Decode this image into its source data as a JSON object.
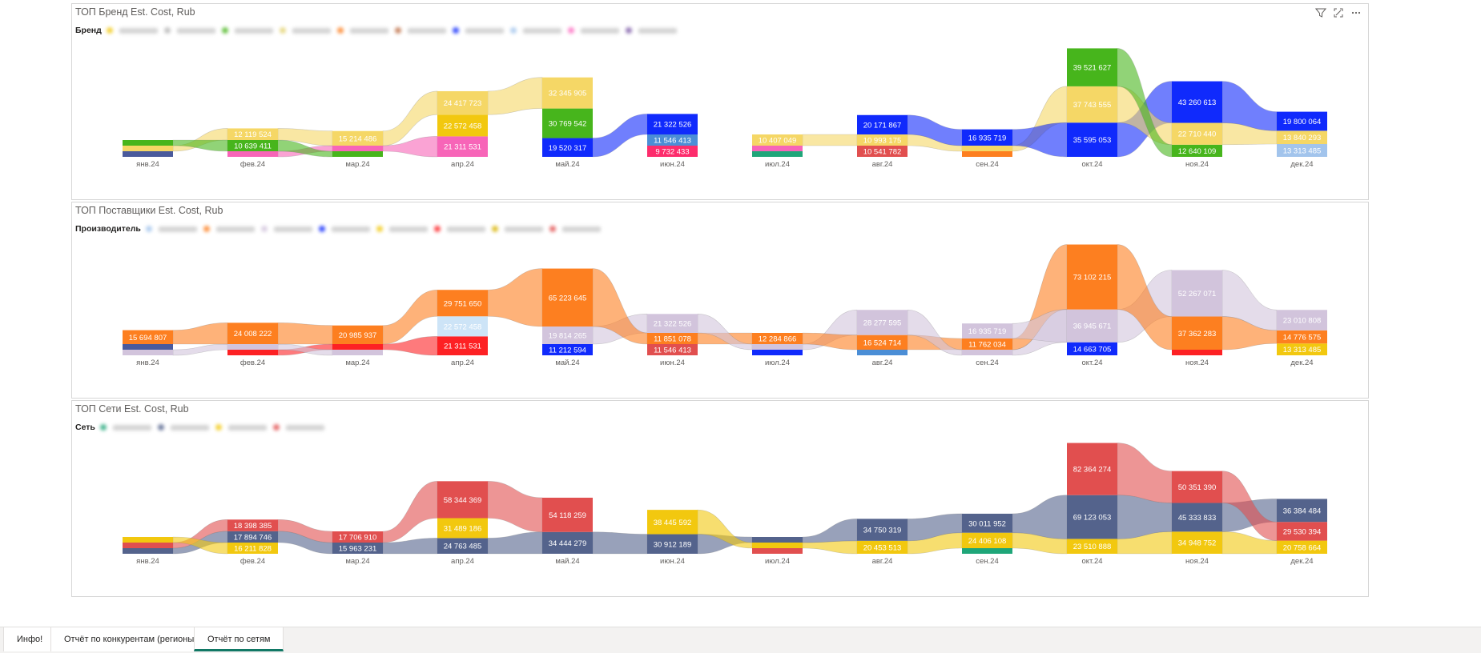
{
  "visuals": [
    {
      "title": "ТОП Бренд Est. Cost, Rub",
      "legend_title": "Бренд",
      "legend_colors": [
        "#f2c80f",
        "#b4b4b4",
        "#47b51c",
        "#e3d26f",
        "#fd7f20",
        "#bd6e44",
        "#102afc",
        "#a2c4ec",
        "#fd6bc1",
        "#7c5aa6"
      ]
    },
    {
      "title": "ТОП Поставщики Est. Cost, Rub",
      "legend_title": "Производитель",
      "legend_colors": [
        "#a2c4ec",
        "#fd7f20",
        "#d2c4dc",
        "#102afc",
        "#f2c80f",
        "#fd2124",
        "#d9b300",
        "#e14f4f"
      ]
    },
    {
      "title": "ТОП Сети Est. Cost, Rub",
      "legend_title": "Сеть",
      "legend_colors": [
        "#1fa679",
        "#54638c",
        "#f2c80f",
        "#e14f4f"
      ]
    }
  ],
  "chart_data": [
    {
      "type": "ribbon",
      "title": "ТОП Бренд Est. Cost, Rub",
      "categories": [
        "янв.24",
        "фев.24",
        "мар.24",
        "апр.24",
        "май.24",
        "июн.24",
        "июл.24",
        "авг.24",
        "сен.24",
        "окт.24",
        "ноя.24",
        "дек.24"
      ],
      "stacks": [
        [
          {
            "v": null,
            "c": "#4a5a9c"
          },
          {
            "v": null,
            "c": "#f5d766"
          },
          {
            "v": null,
            "c": "#47b51c"
          }
        ],
        [
          {
            "v": null,
            "c": "#f765b8"
          },
          {
            "v": 10639411,
            "c": "#47b51c"
          },
          {
            "v": 12119524,
            "c": "#f5d766"
          }
        ],
        [
          {
            "v": null,
            "c": "#47b51c"
          },
          {
            "v": null,
            "c": "#f765b8"
          },
          {
            "v": 15214486,
            "c": "#f5d766"
          }
        ],
        [
          {
            "v": 21311531,
            "c": "#f765b8"
          },
          {
            "v": 22572458,
            "c": "#f2c80f"
          },
          {
            "v": 24417723,
            "c": "#f5d766"
          }
        ],
        [
          {
            "v": 19520317,
            "c": "#102afc"
          },
          {
            "v": 30769542,
            "c": "#47b51c"
          },
          {
            "v": 32345905,
            "c": "#f5d766"
          }
        ],
        [
          {
            "v": 9732433,
            "c": "#fd2c6c"
          },
          {
            "v": 11546413,
            "c": "#4b8ed6"
          },
          {
            "v": 21322526,
            "c": "#102afc"
          }
        ],
        [
          {
            "v": null,
            "c": "#1fa679"
          },
          {
            "v": null,
            "c": "#f765b8"
          },
          {
            "v": 10407049,
            "c": "#f5d766"
          }
        ],
        [
          {
            "v": 10541782,
            "c": "#e14f4f"
          },
          {
            "v": 10993175,
            "c": "#f5d766"
          },
          {
            "v": 20171867,
            "c": "#102afc"
          }
        ],
        [
          {
            "v": null,
            "c": "#fd7f20"
          },
          {
            "v": null,
            "c": "#f5d766"
          },
          {
            "v": 16935719,
            "c": "#102afc"
          }
        ],
        [
          {
            "v": 35595053,
            "c": "#102afc"
          },
          {
            "v": 37743555,
            "c": "#f5d766"
          },
          {
            "v": 39521627,
            "c": "#47b51c"
          }
        ],
        [
          {
            "v": 12640109,
            "c": "#47b51c"
          },
          {
            "v": 22710440,
            "c": "#f5d766"
          },
          {
            "v": 43260613,
            "c": "#102afc"
          }
        ],
        [
          {
            "v": 13313485,
            "c": "#a2c4ec"
          },
          {
            "v": 13840293,
            "c": "#f5d766"
          },
          {
            "v": 19800064,
            "c": "#102afc"
          }
        ]
      ]
    },
    {
      "type": "ribbon",
      "title": "ТОП Поставщики Est. Cost, Rub",
      "categories": [
        "янв.24",
        "фев.24",
        "мар.24",
        "апр.24",
        "май.24",
        "июн.24",
        "июл.24",
        "авг.24",
        "сен.24",
        "окт.24",
        "ноя.24",
        "дек.24"
      ],
      "stacks": [
        [
          {
            "v": null,
            "c": "#d2c4dc"
          },
          {
            "v": null,
            "c": "#4a5a9c"
          },
          {
            "v": 15694807,
            "c": "#fd7f20"
          }
        ],
        [
          {
            "v": null,
            "c": "#fd2124"
          },
          {
            "v": null,
            "c": "#d2c4dc"
          },
          {
            "v": 24008222,
            "c": "#fd7f20"
          }
        ],
        [
          {
            "v": null,
            "c": "#d2c4dc"
          },
          {
            "v": null,
            "c": "#fd2124"
          },
          {
            "v": 20985937,
            "c": "#fd7f20"
          }
        ],
        [
          {
            "v": 21311531,
            "c": "#fd2124"
          },
          {
            "v": 22572458,
            "c": "#cde4f7"
          },
          {
            "v": 29751650,
            "c": "#fd7f20"
          }
        ],
        [
          {
            "v": 11212594,
            "c": "#102afc"
          },
          {
            "v": 19814265,
            "c": "#d2c4dc"
          },
          {
            "v": 65223645,
            "c": "#fd7f20"
          }
        ],
        [
          {
            "v": 11546413,
            "c": "#e14f4f"
          },
          {
            "v": 11851078,
            "c": "#fd7f20"
          },
          {
            "v": 21322526,
            "c": "#d2c4dc"
          }
        ],
        [
          {
            "v": null,
            "c": "#102afc"
          },
          {
            "v": null,
            "c": "#d2c4dc"
          },
          {
            "v": 12284866,
            "c": "#fd7f20"
          }
        ],
        [
          {
            "v": null,
            "c": "#4b8ed6"
          },
          {
            "v": 16524714,
            "c": "#fd7f20"
          },
          {
            "v": 28277595,
            "c": "#d2c4dc"
          }
        ],
        [
          {
            "v": null,
            "c": "#d2c4dc"
          },
          {
            "v": 11762034,
            "c": "#fd7f20"
          },
          {
            "v": 16935719,
            "c": "#d2c4dc"
          }
        ],
        [
          {
            "v": 14663705,
            "c": "#102afc"
          },
          {
            "v": 36945671,
            "c": "#d2c4dc"
          },
          {
            "v": 73102215,
            "c": "#fd7f20"
          }
        ],
        [
          {
            "v": null,
            "c": "#fd2124"
          },
          {
            "v": 37362283,
            "c": "#fd7f20"
          },
          {
            "v": 52267071,
            "c": "#d2c4dc"
          }
        ],
        [
          {
            "v": 13313485,
            "c": "#f2c80f"
          },
          {
            "v": 14776575,
            "c": "#fd7f20"
          },
          {
            "v": 23010808,
            "c": "#d2c4dc"
          }
        ]
      ]
    },
    {
      "type": "ribbon",
      "title": "ТОП Сети Est. Cost, Rub",
      "categories": [
        "янв.24",
        "фев.24",
        "мар.24",
        "апр.24",
        "май.24",
        "июн.24",
        "июл.24",
        "авг.24",
        "сен.24",
        "окт.24",
        "ноя.24",
        "дек.24"
      ],
      "stacks": [
        [
          {
            "v": null,
            "c": "#54638c"
          },
          {
            "v": null,
            "c": "#e14f4f"
          },
          {
            "v": null,
            "c": "#f2c80f"
          }
        ],
        [
          {
            "v": 16211828,
            "c": "#f2c80f"
          },
          {
            "v": 17894746,
            "c": "#54638c"
          },
          {
            "v": 18398385,
            "c": "#e14f4f"
          }
        ],
        [
          {
            "v": 15963231,
            "c": "#54638c"
          },
          {
            "v": 17706910,
            "c": "#e14f4f"
          }
        ],
        [
          {
            "v": 24763485,
            "c": "#54638c"
          },
          {
            "v": 31489186,
            "c": "#f2c80f"
          },
          {
            "v": 58344369,
            "c": "#e14f4f"
          }
        ],
        [
          {
            "v": 34444279,
            "c": "#54638c"
          },
          {
            "v": 54118259,
            "c": "#e14f4f"
          }
        ],
        [
          {
            "v": 30912189,
            "c": "#54638c"
          },
          {
            "v": 38445592,
            "c": "#f2c80f"
          }
        ],
        [
          {
            "v": null,
            "c": "#e14f4f"
          },
          {
            "v": null,
            "c": "#f2c80f"
          },
          {
            "v": null,
            "c": "#54638c"
          }
        ],
        [
          {
            "v": 20453513,
            "c": "#f2c80f"
          },
          {
            "v": 34750319,
            "c": "#54638c"
          }
        ],
        [
          {
            "v": null,
            "c": "#1fa679"
          },
          {
            "v": 24406108,
            "c": "#f2c80f"
          },
          {
            "v": 30011952,
            "c": "#54638c"
          }
        ],
        [
          {
            "v": 23510888,
            "c": "#f2c80f"
          },
          {
            "v": 69123053,
            "c": "#54638c"
          },
          {
            "v": 82364274,
            "c": "#e14f4f"
          }
        ],
        [
          {
            "v": 34948752,
            "c": "#f2c80f"
          },
          {
            "v": 45333833,
            "c": "#54638c"
          },
          {
            "v": 50351390,
            "c": "#e14f4f"
          }
        ],
        [
          {
            "v": 20758664,
            "c": "#f2c80f"
          },
          {
            "v": 29530394,
            "c": "#e14f4f"
          },
          {
            "v": 36384484,
            "c": "#54638c"
          }
        ]
      ]
    }
  ],
  "tabs": [
    {
      "label": "Инфо!"
    },
    {
      "label": "Отчёт по конкурентам (регионы)"
    },
    {
      "label": "Отчёт по сетям"
    }
  ]
}
